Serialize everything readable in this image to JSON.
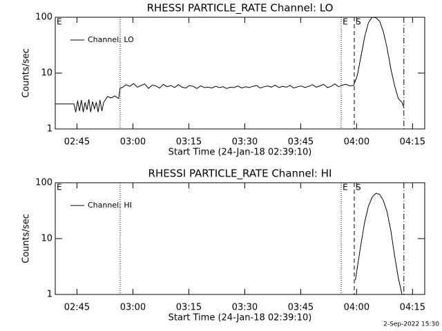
{
  "chart_data": [
    {
      "type": "line",
      "title": "RHESSI PARTICLE_RATE Channel: LO",
      "xlabel": "Start Time (24-Jan-18 02:39:10)",
      "ylabel": "Counts/sec",
      "log_y": true,
      "legend": "upper left",
      "xlim": [
        0,
        99.1
      ],
      "ylim": [
        1,
        100
      ],
      "xticks": [
        {
          "value": 5.83,
          "label": "02:45"
        },
        {
          "value": 20.83,
          "label": "03:00"
        },
        {
          "value": 35.83,
          "label": "03:15"
        },
        {
          "value": 50.83,
          "label": "03:30"
        },
        {
          "value": 65.83,
          "label": "03:45"
        },
        {
          "value": 80.83,
          "label": "04:00"
        },
        {
          "value": 95.83,
          "label": "04:15"
        }
      ],
      "yticks": [
        1,
        10,
        100
      ],
      "vlines": [
        {
          "x": 17.4,
          "style": "dotted"
        },
        {
          "x": 76.7,
          "style": "dotted"
        },
        {
          "x": 80.2,
          "style": "dashed"
        },
        {
          "x": 93.5,
          "style": "dashdot"
        }
      ],
      "annotations": [
        {
          "text": "E",
          "x": 0
        },
        {
          "text": "E",
          "x": 76.7
        },
        {
          "text": "S",
          "x": 80.2
        }
      ],
      "series": [
        {
          "name": "Channel: LO",
          "color": "#000000",
          "x": [
            0,
            1,
            2,
            3,
            4,
            5,
            5.5,
            6,
            6.5,
            7,
            7.5,
            8,
            8.5,
            9,
            9.5,
            10,
            10.5,
            11,
            11.5,
            12,
            12.5,
            13,
            14,
            15,
            16,
            17,
            17.4,
            18,
            19,
            20,
            21,
            22,
            23,
            24,
            25,
            26,
            27,
            28,
            29,
            30,
            31,
            32,
            33,
            34,
            35,
            36,
            37,
            38,
            39,
            40,
            41,
            42,
            43,
            44,
            45,
            46,
            47,
            48,
            49,
            50,
            51,
            52,
            53,
            54,
            55,
            56,
            57,
            58,
            59,
            60,
            61,
            62,
            63,
            64,
            65,
            66,
            67,
            68,
            69,
            70,
            71,
            72,
            73,
            74,
            75,
            76,
            77,
            78,
            79,
            80,
            81,
            82,
            83,
            84,
            85,
            86,
            87,
            88,
            89,
            90,
            91,
            92,
            93,
            93.5
          ],
          "values": [
            2.8,
            2.8,
            2.8,
            2.8,
            2.8,
            2.8,
            2.0,
            3.2,
            2.1,
            3.3,
            2.0,
            3.0,
            2.2,
            3.4,
            2.0,
            3.1,
            2.3,
            3.0,
            2.0,
            3.3,
            2.1,
            3.0,
            3.8,
            3.6,
            3.9,
            3.5,
            5.4,
            5.5,
            6.2,
            5.8,
            6.5,
            5.6,
            6.0,
            6.4,
            5.3,
            6.1,
            5.9,
            5.4,
            6.3,
            5.7,
            6.0,
            5.5,
            6.2,
            5.6,
            5.4,
            6.0,
            5.8,
            5.3,
            5.9,
            5.5,
            5.6,
            5.4,
            5.8,
            5.5,
            5.7,
            5.3,
            5.6,
            5.5,
            5.9,
            5.4,
            5.7,
            5.5,
            5.8,
            6.0,
            5.4,
            5.7,
            5.9,
            5.6,
            6.1,
            5.5,
            5.8,
            5.6,
            6.0,
            5.4,
            5.7,
            5.9,
            5.5,
            5.8,
            6.2,
            5.6,
            5.9,
            6.3,
            5.5,
            5.8,
            6.4,
            5.7,
            6.1,
            6.3,
            5.9,
            6.0,
            9,
            20,
            45,
            80,
            100,
            98,
            85,
            55,
            28,
            12,
            6,
            3.5,
            3.0,
            2.4
          ]
        }
      ]
    },
    {
      "type": "line",
      "title": "RHESSI PARTICLE_RATE Channel: HI",
      "xlabel": "Start Time (24-Jan-18 02:39:10)",
      "ylabel": "Counts/sec",
      "log_y": true,
      "legend": "upper left",
      "xlim": [
        0,
        99.1
      ],
      "ylim": [
        1,
        100
      ],
      "xticks": [
        {
          "value": 5.83,
          "label": "02:45"
        },
        {
          "value": 20.83,
          "label": "03:00"
        },
        {
          "value": 35.83,
          "label": "03:15"
        },
        {
          "value": 50.83,
          "label": "03:30"
        },
        {
          "value": 65.83,
          "label": "03:45"
        },
        {
          "value": 80.83,
          "label": "04:00"
        },
        {
          "value": 95.83,
          "label": "04:15"
        }
      ],
      "yticks": [
        1,
        10,
        100
      ],
      "vlines": [
        {
          "x": 17.4,
          "style": "dotted"
        },
        {
          "x": 76.7,
          "style": "dotted"
        },
        {
          "x": 80.2,
          "style": "dashed"
        },
        {
          "x": 93.5,
          "style": "dashdot"
        }
      ],
      "annotations": [
        {
          "text": "E",
          "x": 0
        },
        {
          "text": "E",
          "x": 76.7
        },
        {
          "text": "S",
          "x": 80.2
        }
      ],
      "series": [
        {
          "name": "Channel: HI",
          "color": "#000000",
          "x": [
            80.5,
            81,
            82,
            83,
            84,
            85,
            86,
            87,
            88,
            89,
            90,
            91,
            92,
            93
          ],
          "values": [
            1.8,
            3,
            8,
            20,
            38,
            55,
            65,
            62,
            48,
            30,
            14,
            5,
            2,
            1
          ]
        }
      ]
    }
  ],
  "footer": "2-Sep-2022 15:30"
}
